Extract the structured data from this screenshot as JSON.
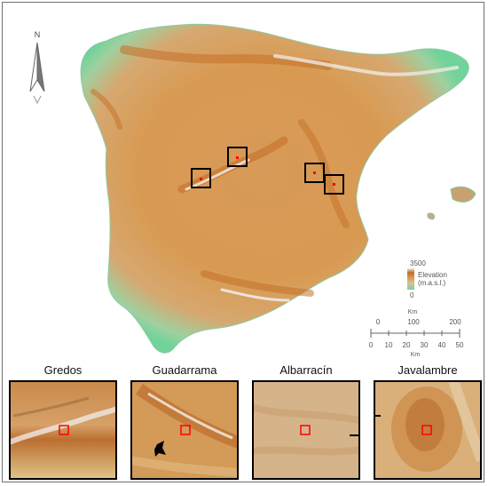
{
  "map": {
    "north_label": "N",
    "legend": {
      "max_value": "3500",
      "title_line1": "Elevation",
      "title_line2": "(m.a.s.l.)",
      "min_value": "0",
      "colors": [
        "#6fd39a",
        "#d8c29a",
        "#d99a53",
        "#c46f28",
        "#f2eee8"
      ]
    },
    "scale_bar": {
      "top_unit": "Km",
      "top_ticks": [
        "0",
        "100",
        "200"
      ],
      "bottom_ticks": [
        "0",
        "10",
        "20",
        "30",
        "40",
        "50"
      ],
      "bottom_unit": "Km"
    },
    "colors": {
      "sea": "#ffffff",
      "lowland": "#6fd39a",
      "plateau": "#d99a53",
      "highland": "#c46f28",
      "peak": "#eeeae4",
      "study_box": "#000000",
      "site_marker": "#ff0000"
    }
  },
  "panels": [
    {
      "title": "Gredos"
    },
    {
      "title": "Guadarrama"
    },
    {
      "title": "Albarracín"
    },
    {
      "title": "Javalambre"
    }
  ]
}
